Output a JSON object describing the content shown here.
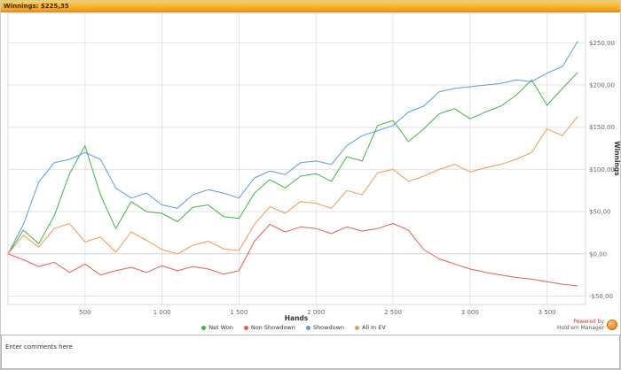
{
  "title_bar": {
    "label": "Winnings: $225,35"
  },
  "chart_data": {
    "type": "line",
    "xlabel": "Hands",
    "ylabel": "Winnings",
    "xlim": [
      0,
      3750
    ],
    "ylim": [
      -60,
      285
    ],
    "grid": true,
    "legend_position": "bottom",
    "x_ticks": [
      500,
      1000,
      1500,
      2000,
      2500,
      3000,
      3500
    ],
    "x_tick_labels": [
      "500",
      "1 000",
      "1 500",
      "2 000",
      "2 500",
      "3 000",
      "3 500"
    ],
    "y_ticks": [
      -50,
      0,
      50,
      100,
      150,
      200,
      250
    ],
    "y_tick_labels": [
      "-$50,00",
      "$0,00",
      "$50,00",
      "$100,00",
      "$150,00",
      "$200,00",
      "$250,00"
    ],
    "x": [
      0,
      100,
      200,
      300,
      400,
      500,
      600,
      700,
      800,
      900,
      1000,
      1100,
      1200,
      1300,
      1400,
      1500,
      1600,
      1700,
      1800,
      1900,
      2000,
      2100,
      2200,
      2300,
      2400,
      2500,
      2600,
      2700,
      2800,
      2900,
      3000,
      3100,
      3200,
      3300,
      3400,
      3500,
      3600,
      3700
    ],
    "series": [
      {
        "name": "Net Won",
        "color": "#3fb73f",
        "values": [
          0,
          28,
          12,
          45,
          95,
          128,
          70,
          30,
          62,
          50,
          48,
          38,
          55,
          58,
          44,
          42,
          72,
          88,
          78,
          92,
          95,
          86,
          115,
          110,
          152,
          158,
          133,
          148,
          166,
          172,
          160,
          168,
          175,
          188,
          206,
          176,
          196,
          215
        ]
      },
      {
        "name": "Non Showdown",
        "color": "#ee5a52",
        "values": [
          0,
          -7,
          -15,
          -10,
          -22,
          -12,
          -25,
          -20,
          -16,
          -22,
          -14,
          -20,
          -15,
          -18,
          -24,
          -20,
          15,
          35,
          26,
          32,
          30,
          24,
          32,
          27,
          30,
          36,
          28,
          5,
          -6,
          -12,
          -18,
          -22,
          -25,
          -28,
          -30,
          -33,
          -36,
          -38
        ]
      },
      {
        "name": "Showdown",
        "color": "#55a0dd",
        "values": [
          0,
          35,
          85,
          108,
          112,
          120,
          112,
          78,
          66,
          72,
          58,
          54,
          70,
          76,
          72,
          66,
          90,
          98,
          94,
          108,
          110,
          106,
          128,
          140,
          146,
          152,
          168,
          175,
          192,
          196,
          198,
          200,
          202,
          206,
          204,
          214,
          222,
          252
        ]
      },
      {
        "name": "All In EV",
        "color": "#f79646",
        "values": [
          0,
          22,
          8,
          30,
          36,
          14,
          20,
          2,
          26,
          16,
          5,
          0,
          10,
          15,
          6,
          4,
          35,
          56,
          48,
          62,
          60,
          54,
          75,
          70,
          96,
          100,
          86,
          92,
          100,
          106,
          97,
          102,
          106,
          112,
          120,
          148,
          140,
          163
        ]
      }
    ]
  },
  "powered_by": {
    "line1": "Powered by",
    "line2": "Hold'em Manager"
  },
  "comment_box": {
    "placeholder": "Enter comments here"
  }
}
